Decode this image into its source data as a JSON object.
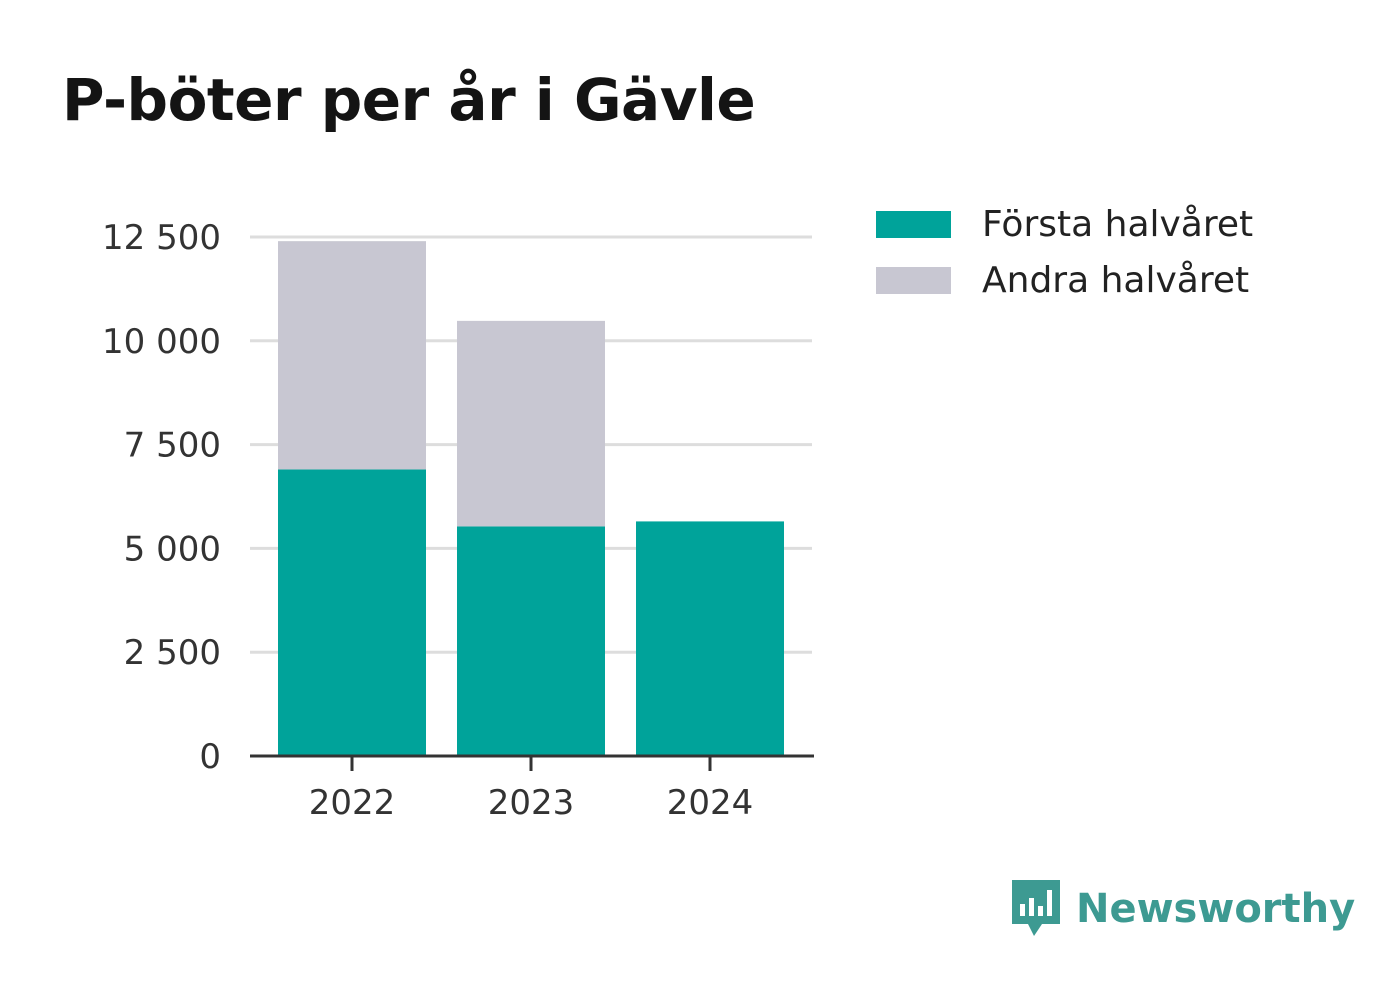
{
  "title": "P-böter per år i Gävle",
  "colors": {
    "first_half": "#00a39a",
    "second_half": "#c8c7d2",
    "brand": "#3d9a92"
  },
  "legend": {
    "items": [
      {
        "label": "Första halvåret",
        "color": "#00a39a"
      },
      {
        "label": "Andra halvåret",
        "color": "#c8c7d2"
      }
    ]
  },
  "brand": {
    "name": "Newsworthy",
    "icon": "newsworthy-logo-icon"
  },
  "chart_data": {
    "type": "bar",
    "stacked": true,
    "title": "P-böter per år i Gävle",
    "categories": [
      "2022",
      "2023",
      "2024"
    ],
    "series": [
      {
        "name": "Första halvåret",
        "values": [
          6900,
          5530,
          5650
        ]
      },
      {
        "name": "Andra halvåret",
        "values": [
          5500,
          4950,
          0
        ]
      }
    ],
    "ylim": [
      0,
      12500
    ],
    "yticks": [
      0,
      2500,
      5000,
      7500,
      10000,
      12500
    ],
    "ytick_labels": [
      "0",
      "2 500",
      "5 000",
      "7 500",
      "10 000",
      "12 500"
    ],
    "xlabel": "",
    "ylabel": "",
    "grid": true,
    "legend_position": "top-right"
  }
}
